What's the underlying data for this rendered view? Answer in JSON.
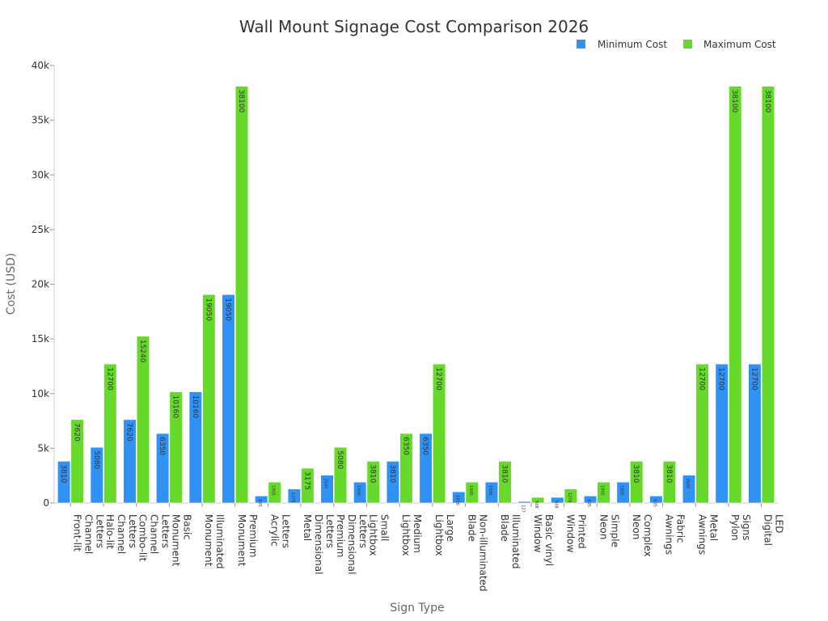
{
  "chart_data": {
    "type": "bar",
    "title": "Wall Mount Signage Cost Comparison 2026",
    "xlabel": "Sign Type",
    "ylabel": "Cost (USD)",
    "ylim": [
      0,
      40000
    ],
    "yticks": [
      0,
      5000,
      10000,
      15000,
      20000,
      25000,
      30000,
      35000,
      40000
    ],
    "ytick_labels": [
      "0",
      "5k",
      "10k",
      "15k",
      "20k",
      "25k",
      "30k",
      "35k",
      "40k"
    ],
    "grid": false,
    "legend": "top-right",
    "categories": [
      [
        "Front-lit",
        "Channel",
        "Letters"
      ],
      [
        "Halo-lit",
        "Channel",
        "Letters"
      ],
      [
        "Combo-lit",
        "Channel",
        "Letters"
      ],
      [
        "Monument",
        "Basic"
      ],
      [
        "Monument",
        "Illuminated"
      ],
      [
        "Monument",
        "Premium"
      ],
      [
        "Acrylic",
        "Letters"
      ],
      [
        "Metal",
        "Dimensional",
        "Letters"
      ],
      [
        "Premium",
        "Dimensional",
        "Letters"
      ],
      [
        "Lightbox",
        "Small"
      ],
      [
        "Lightbox",
        "Medium"
      ],
      [
        "Lightbox",
        "Large"
      ],
      [
        "Blade",
        "Non-illuminated"
      ],
      [
        "Blade",
        "Illuminated"
      ],
      [
        "Window",
        "Basic vinyl"
      ],
      [
        "Window",
        "Printed"
      ],
      [
        "Neon",
        "Simple"
      ],
      [
        "Neon",
        "Complex"
      ],
      [
        "Awnings",
        "Fabric"
      ],
      [
        "Awnings",
        "Metal"
      ],
      [
        "Pylon",
        "Signs"
      ],
      [
        "Digital",
        "LED"
      ]
    ],
    "series": [
      {
        "name": "Minimum Cost",
        "color": "#3192f5",
        "values": [
          3810,
          5080,
          7620,
          6350,
          10160,
          19050,
          635,
          1270,
          2540,
          1905,
          3810,
          6350,
          1016,
          1905,
          127,
          508,
          635,
          1905,
          635,
          2540,
          12700,
          12700
        ]
      },
      {
        "name": "Maximum Cost",
        "color": "#66d92a",
        "values": [
          7620,
          12700,
          15240,
          10160,
          19050,
          38100,
          1905,
          3175,
          5080,
          3810,
          6350,
          12700,
          1905,
          3810,
          508,
          1270,
          1905,
          3810,
          3810,
          12700,
          38100,
          38100
        ]
      }
    ]
  }
}
